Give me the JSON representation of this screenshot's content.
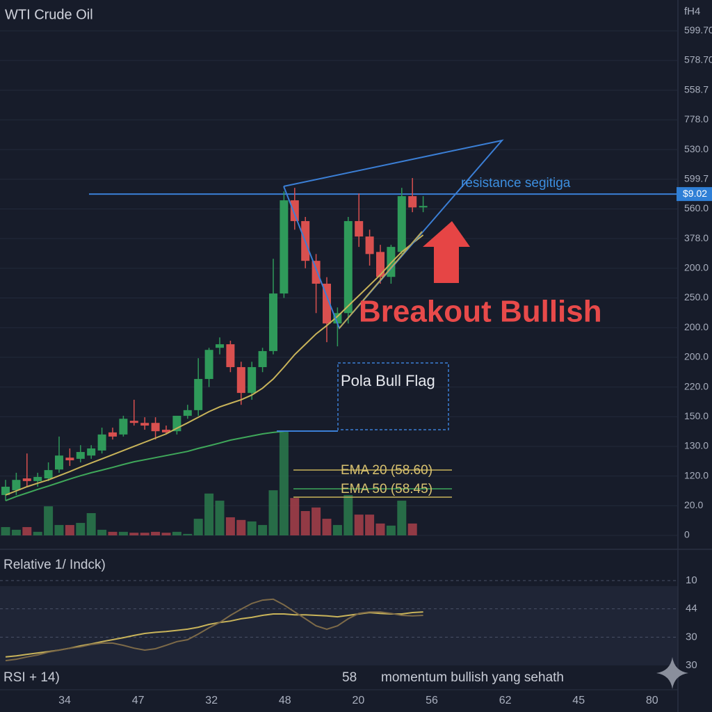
{
  "chart_data": {
    "type": "candlestick",
    "title": "WTI Crude Oil",
    "timeframe": "fH4",
    "ylim": [
      0,
      17.5
    ],
    "yticks": [
      {
        "value": 17,
        "label": "599.70"
      },
      {
        "value": 16,
        "label": "578.70"
      },
      {
        "value": 15,
        "label": "558.7"
      },
      {
        "value": 14,
        "label": "778.0"
      },
      {
        "value": 13,
        "label": "530.0"
      },
      {
        "value": 12,
        "label": "599.7"
      },
      {
        "value": 11,
        "label": "560.0"
      },
      {
        "value": 10,
        "label": "378.0"
      },
      {
        "value": 9,
        "label": "200.0"
      },
      {
        "value": 8,
        "label": "250.0"
      },
      {
        "value": 7,
        "label": "200.0"
      },
      {
        "value": 6,
        "label": "200.0"
      },
      {
        "value": 5,
        "label": "220.0"
      },
      {
        "value": 4,
        "label": "150.0"
      },
      {
        "value": 3,
        "label": "130.0"
      },
      {
        "value": 2,
        "label": "120.0"
      },
      {
        "value": 1,
        "label": "20.0"
      },
      0
    ],
    "grid": true,
    "up_color": "#2f9a5a",
    "down_color": "#d9504f",
    "open": [
      1.36,
      1.52,
      1.92,
      1.83,
      1.92,
      2.22,
      2.62,
      2.58,
      2.69,
      2.86,
      3.47,
      3.4,
      3.86,
      3.79,
      3.79,
      3.56,
      3.51,
      4.03,
      4.22,
      5.27,
      6.32,
      6.44,
      5.67,
      4.8,
      5.67,
      6.21,
      8.15,
      11.29,
      10.59,
      9.25,
      8.48,
      7.14,
      7.49,
      10.59,
      10.07,
      9.55,
      8.71,
      9.55,
      11.43,
      11.05
    ],
    "high": [
      1.87,
      2.11,
      2.76,
      2.11,
      2.46,
      3.33,
      2.93,
      3.04,
      3.04,
      3.63,
      3.63,
      4.03,
      4.57,
      3.98,
      3.98,
      3.7,
      4.03,
      4.4,
      5.97,
      6.32,
      6.67,
      6.56,
      5.85,
      5.85,
      6.32,
      9.32,
      11.59,
      11.71,
      10.73,
      9.48,
      8.7,
      7.68,
      10.73,
      11.52,
      10.3,
      9.79,
      9.79,
      11.71,
      12.04,
      11.43
    ],
    "low": [
      1.17,
      1.36,
      1.64,
      1.64,
      1.83,
      2.11,
      2.34,
      2.46,
      2.58,
      2.76,
      3.23,
      3.33,
      3.7,
      3.56,
      3.23,
      3.4,
      3.4,
      3.93,
      4.03,
      5.0,
      6.1,
      5.5,
      4.4,
      4.57,
      5.5,
      6.1,
      8.0,
      10.3,
      9.0,
      7.49,
      6.51,
      6.37,
      7.14,
      9.72,
      9.09,
      8.48,
      8.48,
      9.48,
      10.89,
      10.89
    ],
    "close": [
      1.64,
      1.87,
      1.83,
      1.97,
      2.2,
      2.69,
      2.53,
      2.81,
      2.93,
      3.4,
      3.33,
      3.93,
      3.79,
      3.7,
      3.51,
      3.47,
      4.03,
      4.22,
      5.27,
      6.25,
      6.44,
      5.67,
      4.8,
      5.67,
      6.21,
      8.15,
      11.29,
      10.59,
      9.25,
      8.48,
      7.14,
      7.49,
      10.59,
      10.07,
      9.48,
      8.71,
      9.72,
      11.43,
      11.05,
      11.1
    ],
    "volume": [
      0.28,
      0.19,
      0.28,
      0.12,
      0.98,
      0.35,
      0.35,
      0.42,
      0.75,
      0.19,
      0.12,
      0.12,
      0.09,
      0.09,
      0.12,
      0.09,
      0.12,
      0.05,
      0.56,
      1.41,
      1.17,
      0.61,
      0.52,
      0.47,
      0.35,
      1.52,
      3.51,
      1.26,
      0.82,
      0.94,
      0.56,
      0.35,
      1.36,
      0.7,
      0.7,
      0.4,
      0.33,
      1.17,
      0.4,
      0
    ],
    "series": [
      {
        "name": "EMA 20 (58.60)",
        "color": "#c9b45a",
        "values": [
          1.36,
          1.5,
          1.64,
          1.76,
          1.87,
          2.01,
          2.15,
          2.3,
          2.44,
          2.58,
          2.72,
          2.86,
          3.0,
          3.14,
          3.28,
          3.42,
          3.61,
          3.79,
          3.98,
          4.17,
          4.33,
          4.45,
          4.57,
          4.73,
          4.96,
          5.27,
          5.67,
          6.09,
          6.44,
          6.79,
          7.07,
          7.38,
          7.73,
          8.08,
          8.43,
          8.78,
          9.18,
          9.55,
          9.84,
          10.12
        ]
      },
      {
        "name": "EMA 50 (58.45)",
        "color": "#3fa85a",
        "values": [
          1.17,
          1.31,
          1.43,
          1.55,
          1.66,
          1.78,
          1.9,
          2.01,
          2.11,
          2.2,
          2.29,
          2.39,
          2.48,
          2.55,
          2.62,
          2.69,
          2.76,
          2.83,
          2.93,
          3.02,
          3.11,
          3.21,
          3.28,
          3.35,
          3.42,
          3.47,
          3.51,
          null,
          null,
          null,
          null,
          null,
          null,
          null,
          null,
          null,
          null,
          null,
          null,
          null
        ]
      }
    ],
    "resistance": {
      "value": 11.5,
      "label": "$9.02"
    },
    "annotations": {
      "resistance": "resistance segitiga",
      "breakout": "Breakout Bullish",
      "pattern": "Pola Bull Flag"
    },
    "xtick_labels": [
      "34",
      "47",
      "32",
      "48",
      "20",
      "56",
      "62",
      "45",
      "80"
    ],
    "rsi": {
      "title": "Relative 1/ Indck)",
      "label": "RSI + 14)",
      "ylim": [
        0,
        3
      ],
      "yticks": [
        {
          "value": 3,
          "label": "10"
        },
        {
          "value": 2,
          "label": "44"
        },
        {
          "value": 1,
          "label": "30"
        },
        {
          "value": 0,
          "label": "30"
        }
      ],
      "series": [
        {
          "color": "#c9b45a",
          "values": [
            0.3,
            0.34,
            0.39,
            0.44,
            0.49,
            0.54,
            0.61,
            0.69,
            0.76,
            0.84,
            0.91,
            0.98,
            1.06,
            1.13,
            1.17,
            1.2,
            1.24,
            1.28,
            1.35,
            1.45,
            1.52,
            1.57,
            1.65,
            1.7,
            1.77,
            1.82,
            1.82,
            1.79,
            1.79,
            1.77,
            1.75,
            1.72,
            1.77,
            1.82,
            1.87,
            1.84,
            1.82,
            1.82,
            1.87,
            1.89
          ]
        },
        {
          "color": "#7d6a48",
          "values": [
            0.17,
            0.22,
            0.3,
            0.37,
            0.47,
            0.54,
            0.61,
            0.66,
            0.74,
            0.79,
            0.79,
            0.71,
            0.61,
            0.54,
            0.59,
            0.71,
            0.84,
            0.91,
            1.11,
            1.33,
            1.52,
            1.77,
            1.99,
            2.19,
            2.31,
            2.34,
            2.14,
            1.89,
            1.65,
            1.4,
            1.28,
            1.4,
            1.65,
            1.84,
            1.89,
            1.89,
            1.84,
            1.77,
            1.75,
            1.77
          ]
        }
      ]
    },
    "footer": {
      "value": 58,
      "note": "momentum bullish yang sehath"
    }
  }
}
